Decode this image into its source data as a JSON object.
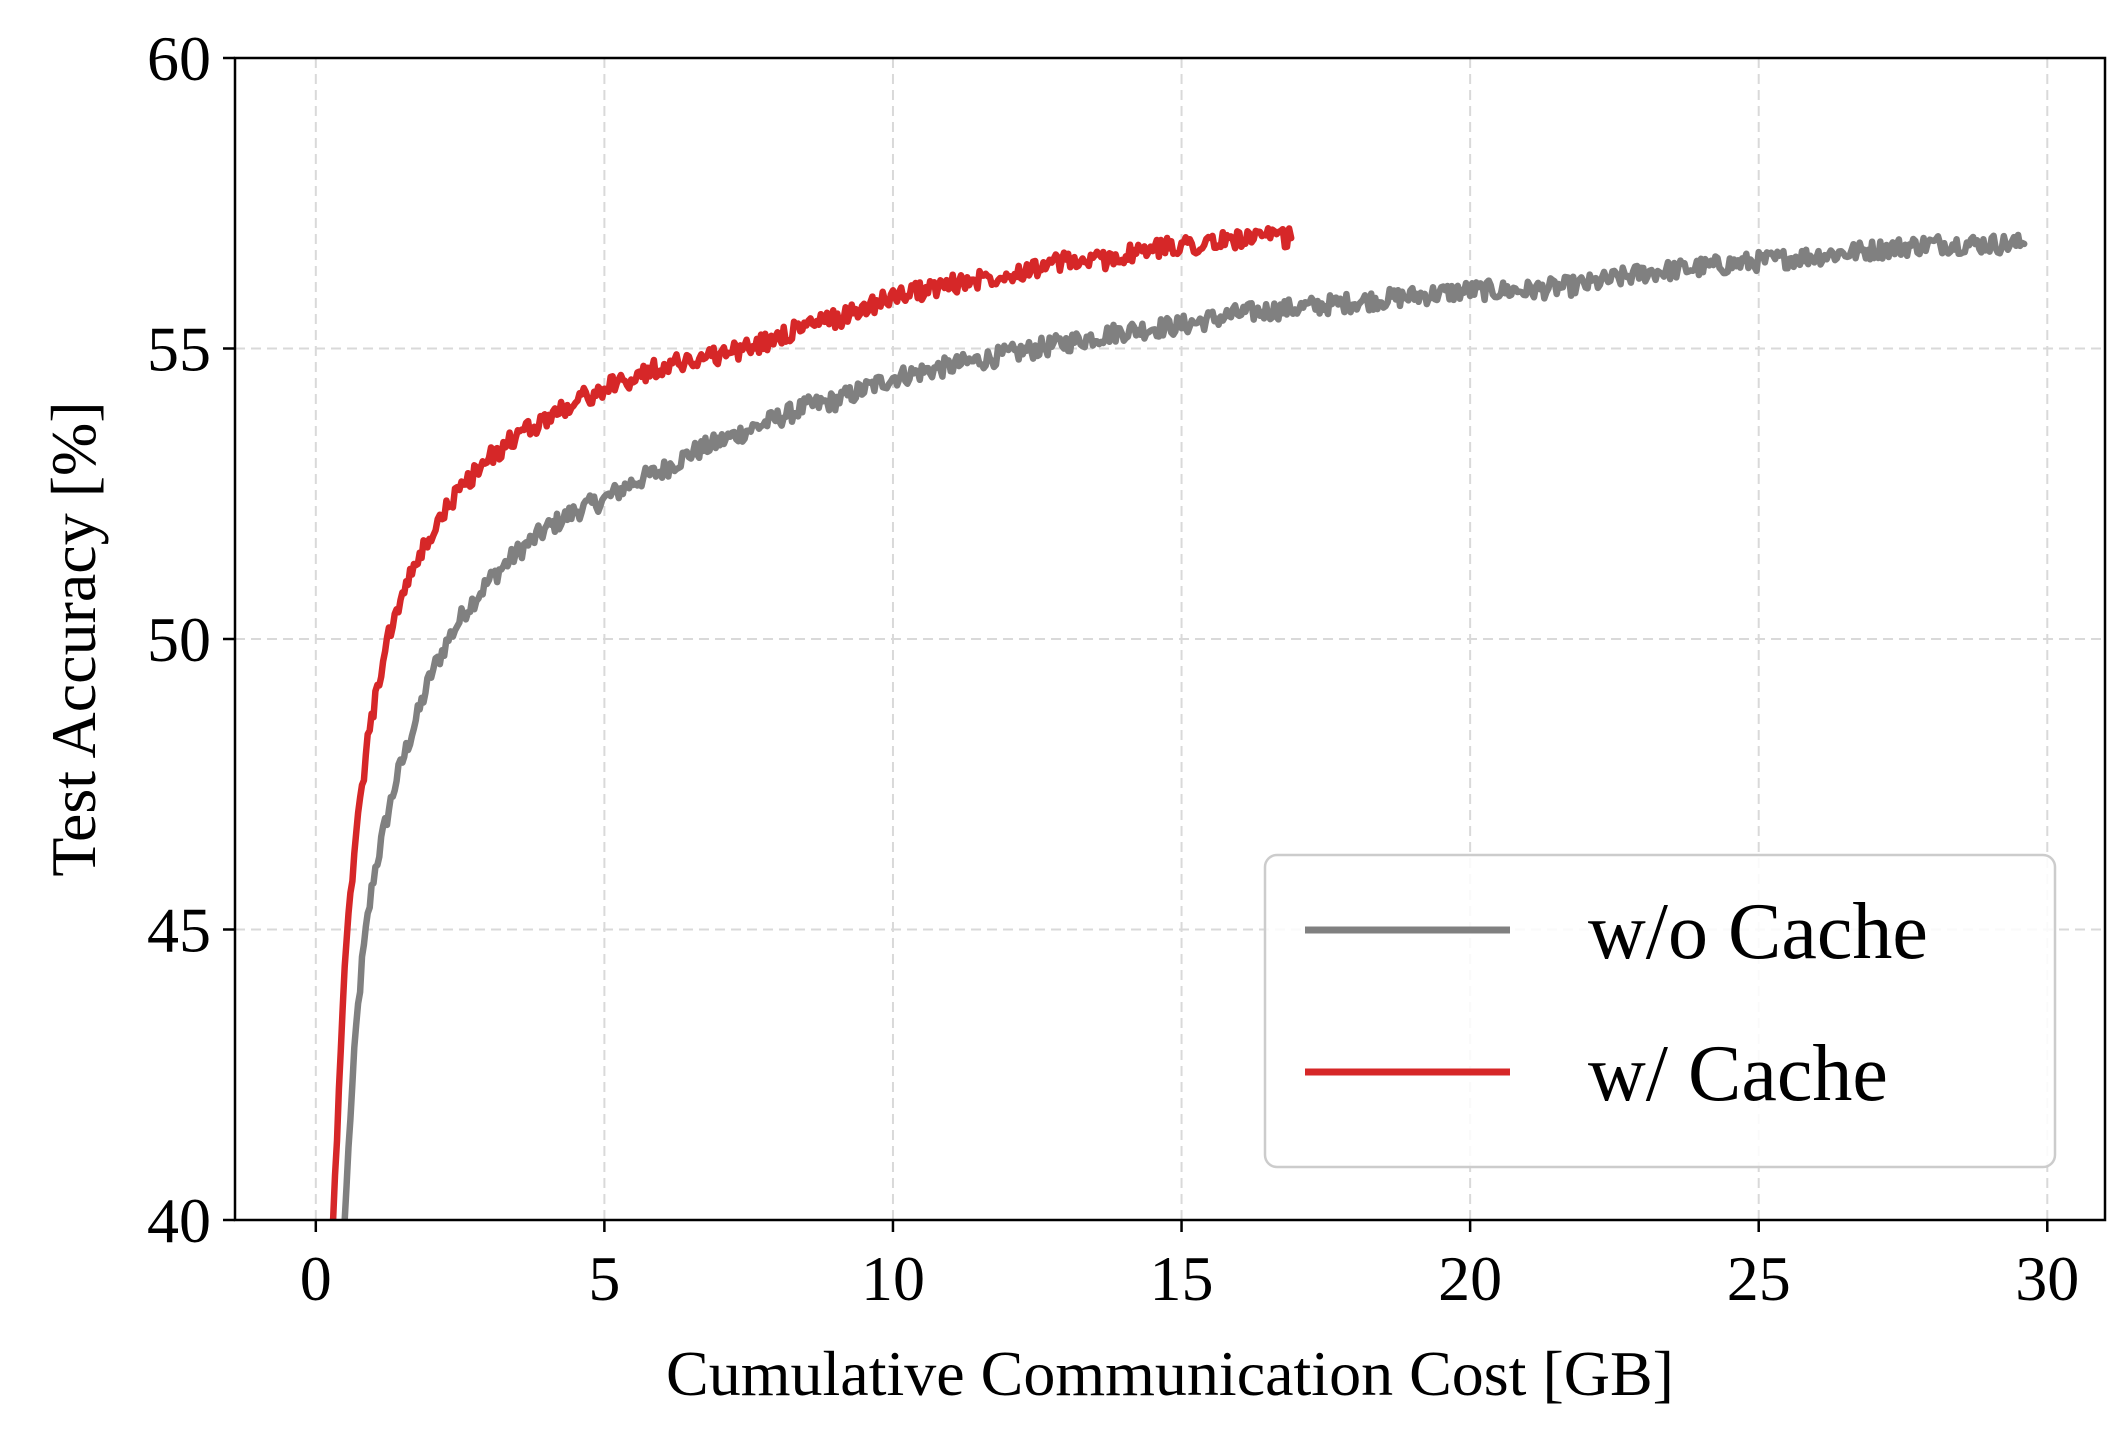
{
  "chart_data": {
    "type": "line",
    "title": "",
    "xlabel": "Cumulative Communication Cost [GB]",
    "ylabel": "Test Accuracy [%]",
    "xlim": [
      -1.4,
      31.0
    ],
    "ylim": [
      40,
      60
    ],
    "xticks": [
      "0",
      "5",
      "10",
      "15",
      "20",
      "25",
      "30"
    ],
    "xtick_values": [
      0,
      5,
      10,
      15,
      20,
      25,
      30
    ],
    "yticks": [
      "40",
      "45",
      "50",
      "55",
      "60"
    ],
    "ytick_values": [
      40,
      45,
      50,
      55,
      60
    ],
    "grid": true,
    "legend_position": "bottom-right",
    "series": [
      {
        "name": "w/o Cache",
        "color": "#808080",
        "x": [
          0.5,
          0.6,
          0.7,
          0.8,
          0.9,
          1.0,
          1.2,
          1.4,
          1.6,
          1.8,
          2.0,
          2.3,
          2.6,
          3.0,
          3.5,
          4.0,
          4.5,
          5.0,
          5.5,
          6.0,
          6.5,
          7.0,
          7.5,
          8.0,
          8.5,
          9.0,
          9.5,
          10.0,
          11.0,
          12.0,
          13.0,
          14.0,
          15.0,
          16.0,
          17.0,
          18.0,
          19.0,
          20.0,
          21.0,
          22.0,
          23.0,
          24.0,
          25.0,
          26.0,
          27.0,
          28.0,
          29.0,
          29.6
        ],
        "y": [
          40.0,
          41.8,
          43.3,
          44.4,
          45.2,
          45.9,
          46.8,
          47.6,
          48.2,
          48.8,
          49.4,
          50.0,
          50.5,
          51.0,
          51.5,
          51.9,
          52.2,
          52.4,
          52.7,
          52.9,
          53.2,
          53.4,
          53.6,
          53.8,
          54.0,
          54.1,
          54.3,
          54.5,
          54.7,
          54.9,
          55.1,
          55.3,
          55.4,
          55.6,
          55.7,
          55.8,
          55.9,
          56.0,
          56.0,
          56.1,
          56.3,
          56.4,
          56.5,
          56.6,
          56.7,
          56.8,
          56.8,
          56.8
        ]
      },
      {
        "name": "w/ Cache",
        "color": "#d62728",
        "x": [
          0.3,
          0.4,
          0.5,
          0.6,
          0.7,
          0.8,
          0.9,
          1.0,
          1.1,
          1.2,
          1.4,
          1.6,
          1.8,
          2.0,
          2.3,
          2.6,
          3.0,
          3.5,
          4.0,
          4.5,
          5.0,
          5.5,
          6.0,
          6.5,
          7.0,
          7.5,
          8.0,
          8.5,
          9.0,
          9.5,
          10.0,
          10.5,
          11.0,
          11.5,
          12.0,
          12.5,
          13.0,
          13.5,
          14.0,
          14.5,
          15.0,
          15.5,
          16.0,
          16.5,
          16.9
        ],
        "y": [
          40.0,
          42.3,
          44.2,
          45.6,
          46.6,
          47.5,
          48.2,
          48.8,
          49.3,
          49.8,
          50.5,
          51.0,
          51.4,
          51.8,
          52.3,
          52.7,
          53.1,
          53.5,
          53.8,
          54.1,
          54.3,
          54.5,
          54.7,
          54.8,
          54.9,
          55.0,
          55.2,
          55.4,
          55.5,
          55.7,
          55.9,
          56.0,
          56.1,
          56.2,
          56.3,
          56.4,
          56.5,
          56.5,
          56.6,
          56.7,
          56.8,
          56.8,
          56.9,
          56.9,
          56.9
        ]
      }
    ]
  }
}
